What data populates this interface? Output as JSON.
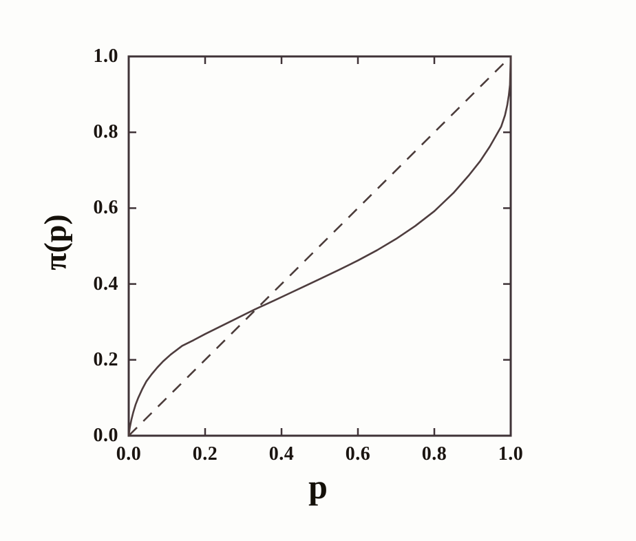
{
  "figure": {
    "description": "Probability weighting function plot",
    "background": "#fdfdfb"
  },
  "chart_data": {
    "type": "line",
    "title": "",
    "xlabel": "p",
    "ylabel": "π(p)",
    "xlim": [
      0,
      1
    ],
    "ylim": [
      0,
      1
    ],
    "grid": false,
    "legend": "none",
    "xticks": [
      {
        "value": 0.0,
        "label": "0.0"
      },
      {
        "value": 0.2,
        "label": "0.2"
      },
      {
        "value": 0.4,
        "label": "0.4"
      },
      {
        "value": 0.6,
        "label": "0.6"
      },
      {
        "value": 0.8,
        "label": "0.8"
      },
      {
        "value": 1.0,
        "label": "1.0"
      }
    ],
    "yticks": [
      {
        "value": 0.0,
        "label": "0.0"
      },
      {
        "value": 0.2,
        "label": "0.2"
      },
      {
        "value": 0.4,
        "label": "0.4"
      },
      {
        "value": 0.6,
        "label": "0.6"
      },
      {
        "value": 0.8,
        "label": "0.8"
      },
      {
        "value": 1.0,
        "label": "1.0"
      }
    ],
    "series": [
      {
        "name": "probability-weighting-curve",
        "style": "solid",
        "x": [
          0,
          0.003,
          0.007,
          0.012,
          0.018,
          0.025,
          0.035,
          0.046,
          0.06,
          0.075,
          0.09,
          0.11,
          0.14,
          0.17,
          0.2,
          0.24,
          0.28,
          0.33,
          0.38,
          0.42,
          0.46,
          0.5,
          0.55,
          0.6,
          0.65,
          0.7,
          0.75,
          0.8,
          0.85,
          0.89,
          0.92,
          0.945,
          0.962,
          0.975,
          0.985,
          0.991,
          0.995,
          0.998,
          1.0
        ],
        "y": [
          0,
          0.022,
          0.042,
          0.062,
          0.082,
          0.1,
          0.122,
          0.143,
          0.162,
          0.18,
          0.196,
          0.214,
          0.237,
          0.252,
          0.268,
          0.288,
          0.308,
          0.333,
          0.356,
          0.375,
          0.394,
          0.413,
          0.437,
          0.462,
          0.489,
          0.519,
          0.553,
          0.592,
          0.64,
          0.686,
          0.724,
          0.762,
          0.792,
          0.815,
          0.845,
          0.872,
          0.898,
          0.925,
          1.0
        ]
      },
      {
        "name": "identity-line",
        "style": "dashed",
        "x": [
          0,
          1
        ],
        "y": [
          0,
          1
        ]
      }
    ],
    "annotations": {
      "crossover_point": [
        0.33,
        0.33
      ]
    },
    "colors": {
      "axis": "#3f3337",
      "solid_line": "#4e3d3e",
      "dashed_line": "#4b3c3a",
      "text": "#1a1410",
      "background": "#fdfdfb"
    }
  }
}
